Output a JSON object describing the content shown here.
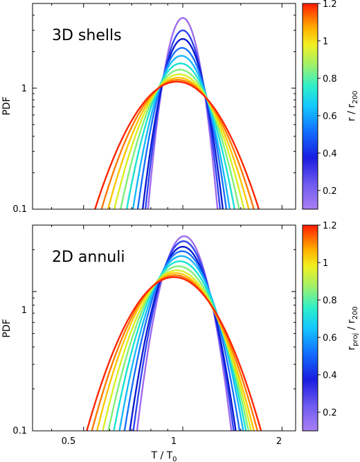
{
  "chart_data": [
    {
      "type": "line",
      "title": "3D shells",
      "xlabel": "",
      "ylabel": "PDF",
      "xscale": "log",
      "yscale": "log",
      "xlim": [
        0.35,
        2.2
      ],
      "ylim": [
        0.1,
        5.0
      ],
      "ytick_labels": [
        "0.1",
        "1"
      ],
      "colorbar": {
        "label_main": "r / r",
        "label_sub": "200",
        "colormap": "rainbow",
        "range": [
          0.1,
          1.2
        ],
        "tick_labels": [
          "0.2",
          "0.4",
          "0.6",
          "0.8",
          "1",
          "1.2"
        ]
      },
      "series": [
        {
          "r": 0.15,
          "color": "#9e6bf0",
          "peak_x": 1.0,
          "peak_y": 3.8,
          "sigma": 0.09
        },
        {
          "r": 0.25,
          "color": "#2f44f0",
          "peak_x": 1.0,
          "peak_y": 3.0,
          "sigma": 0.1
        },
        {
          "r": 0.35,
          "color": "#0c1ad0",
          "peak_x": 1.0,
          "peak_y": 2.55,
          "sigma": 0.11
        },
        {
          "r": 0.45,
          "color": "#1870ff",
          "peak_x": 0.995,
          "peak_y": 2.15,
          "sigma": 0.125
        },
        {
          "r": 0.55,
          "color": "#15b8ff",
          "peak_x": 0.99,
          "peak_y": 1.85,
          "sigma": 0.14
        },
        {
          "r": 0.65,
          "color": "#18e3d0",
          "peak_x": 0.985,
          "peak_y": 1.6,
          "sigma": 0.16
        },
        {
          "r": 0.75,
          "color": "#7ff07a",
          "peak_x": 0.98,
          "peak_y": 1.42,
          "sigma": 0.18
        },
        {
          "r": 0.85,
          "color": "#d8f020",
          "peak_x": 0.975,
          "peak_y": 1.3,
          "sigma": 0.2
        },
        {
          "r": 0.95,
          "color": "#ffc600",
          "peak_x": 0.97,
          "peak_y": 1.22,
          "sigma": 0.22
        },
        {
          "r": 1.05,
          "color": "#ff7a00",
          "peak_x": 0.965,
          "peak_y": 1.17,
          "sigma": 0.24
        },
        {
          "r": 1.15,
          "color": "#ff2400",
          "peak_x": 0.96,
          "peak_y": 1.13,
          "sigma": 0.26
        }
      ]
    },
    {
      "type": "line",
      "title": "2D annuli",
      "xlabel": "T / T",
      "xlabel_sub": "0",
      "ylabel": "PDF",
      "xscale": "log",
      "yscale": "log",
      "xlim": [
        0.35,
        2.2
      ],
      "ylim": [
        0.1,
        3.0
      ],
      "xtick_labels": [
        "0.5",
        "1",
        "2"
      ],
      "ytick_labels": [
        "0.1",
        "1"
      ],
      "colorbar": {
        "label_main": "r",
        "label_sub1": "proj",
        "label_mid": " / r",
        "label_sub2": "200",
        "colormap": "rainbow",
        "range": [
          0.1,
          1.2
        ],
        "tick_labels": [
          "0.2",
          "0.4",
          "0.6",
          "0.8",
          "1",
          "1.2"
        ]
      },
      "series": [
        {
          "r": 0.15,
          "color": "#9e6bf0",
          "peak_x": 1.01,
          "peak_y": 2.5,
          "sigma": 0.13
        },
        {
          "r": 0.25,
          "color": "#2f44f0",
          "peak_x": 1.005,
          "peak_y": 2.3,
          "sigma": 0.14
        },
        {
          "r": 0.35,
          "color": "#0c1ad0",
          "peak_x": 1.0,
          "peak_y": 2.1,
          "sigma": 0.15
        },
        {
          "r": 0.45,
          "color": "#1870ff",
          "peak_x": 0.995,
          "peak_y": 1.95,
          "sigma": 0.165
        },
        {
          "r": 0.55,
          "color": "#15b8ff",
          "peak_x": 0.99,
          "peak_y": 1.8,
          "sigma": 0.18
        },
        {
          "r": 0.65,
          "color": "#18e3d0",
          "peak_x": 0.98,
          "peak_y": 1.65,
          "sigma": 0.195
        },
        {
          "r": 0.75,
          "color": "#7ff07a",
          "peak_x": 0.97,
          "peak_y": 1.52,
          "sigma": 0.21
        },
        {
          "r": 0.85,
          "color": "#d8f020",
          "peak_x": 0.96,
          "peak_y": 1.42,
          "sigma": 0.225
        },
        {
          "r": 0.95,
          "color": "#ffc600",
          "peak_x": 0.95,
          "peak_y": 1.36,
          "sigma": 0.24
        },
        {
          "r": 1.05,
          "color": "#ff7a00",
          "peak_x": 0.945,
          "peak_y": 1.31,
          "sigma": 0.255
        },
        {
          "r": 1.15,
          "color": "#ff2400",
          "peak_x": 0.94,
          "peak_y": 1.27,
          "sigma": 0.27
        }
      ]
    }
  ]
}
